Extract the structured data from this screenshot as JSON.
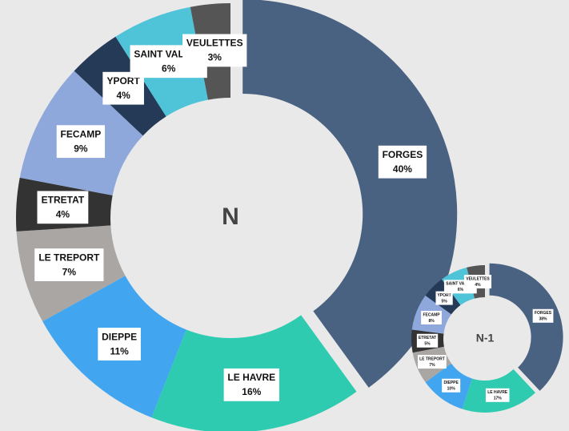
{
  "chart_data": [
    {
      "type": "donut",
      "center_label": "N",
      "categories": [
        "FORGES",
        "LE HAVRE",
        "DIEPPE",
        "LE TREPORT",
        "ETRETAT",
        "FECAMP",
        "YPORT",
        "SAINT VALERY",
        "VEULETTES"
      ],
      "values": [
        40,
        16,
        11,
        7,
        4,
        9,
        4,
        6,
        3
      ],
      "value_labels": [
        "40%",
        "16%",
        "11%",
        "7%",
        "4%",
        "9%",
        "4%",
        "6%",
        "3%"
      ],
      "colors": [
        "#4a6282",
        "#2ecbb0",
        "#42a5f0",
        "#a9a6a4",
        "#333333",
        "#8fa8dc",
        "#243a56",
        "#4fc4d8",
        "#555555"
      ]
    },
    {
      "type": "donut",
      "center_label": "N-1",
      "categories": [
        "FORGES",
        "LE HAVRE",
        "DIEPPE",
        "LE TREPORT",
        "ETRETAT",
        "FECAMP",
        "YPORT",
        "SAINT VALERY",
        "VEULETTES"
      ],
      "values": [
        38,
        17,
        10,
        7,
        5,
        8,
        5,
        6,
        4
      ],
      "value_labels": [
        "38%",
        "17%",
        "10%",
        "7%",
        "5%",
        "8%",
        "5%",
        "6%",
        "4%"
      ],
      "colors": [
        "#4a6282",
        "#2ecbb0",
        "#42a5f0",
        "#a9a6a4",
        "#333333",
        "#8fa8dc",
        "#243a56",
        "#4fc4d8",
        "#555555"
      ]
    }
  ]
}
